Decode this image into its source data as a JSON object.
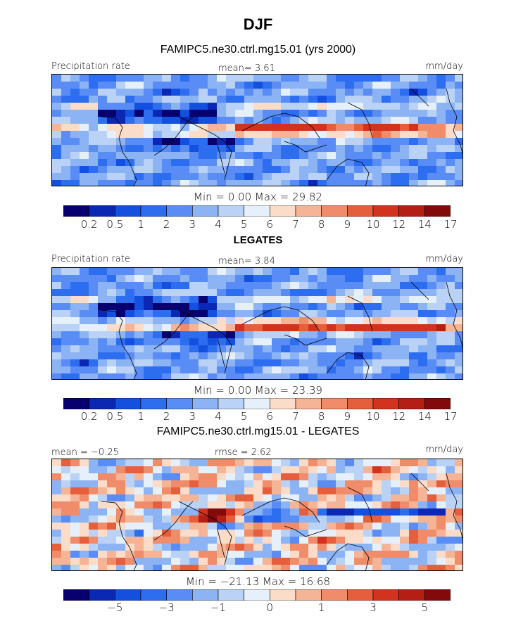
{
  "figure": {
    "title": "DJF",
    "colors": [
      "#08006e",
      "#0a28b4",
      "#1450e0",
      "#2d6ef0",
      "#5a8cf5",
      "#8cb4f5",
      "#b9d2f5",
      "#e6f0fa",
      "#fadcc8",
      "#f5b496",
      "#f08c69",
      "#e65f3c",
      "#d2321e",
      "#b41e14",
      "#820a0a"
    ]
  },
  "panels": [
    {
      "subtitle": "FAMIPC5.ne30.ctrl.mg15.01 (yrs 2000)",
      "left_label": "Precipitation rate",
      "center_label": "mean=   3.61",
      "right_label": "mm/day",
      "minmax": "Min =   0.00 Max =  29.82",
      "colorbar_ticks": [
        "0.2",
        "0.5",
        "1",
        "2",
        "3",
        "4",
        "5",
        "6",
        "7",
        "8",
        "9",
        "10",
        "12",
        "14",
        "17"
      ],
      "field": "model"
    },
    {
      "subtitle": "LEGATES",
      "left_label": "Precipitation rate",
      "center_label": "mean=   3.84",
      "right_label": "mm/day",
      "minmax": "Min =   0.00 Max =  23.39",
      "colorbar_ticks": [
        "0.2",
        "0.5",
        "1",
        "2",
        "3",
        "4",
        "5",
        "6",
        "7",
        "8",
        "9",
        "10",
        "12",
        "14",
        "17"
      ],
      "field": "obs"
    },
    {
      "subtitle": "FAMIPC5.ne30.ctrl.mg15.01 - LEGATES",
      "left_label": "mean =  −0.25",
      "center_label": "rmse =   2.62",
      "right_label": "mm/day",
      "minmax": "Min = −21.13 Max =  16.68",
      "colorbar_ticks": [
        "−5",
        "−3",
        "−1",
        "0",
        "1",
        "3",
        "5"
      ],
      "field": "diff"
    }
  ],
  "chart_data": [
    {
      "type": "heatmap",
      "title": "FAMIPC5.ne30.ctrl.mg15.01 (yrs 2000)",
      "quantity": "Precipitation rate",
      "units": "mm/day",
      "mean": 3.61,
      "min": 0.0,
      "max": 29.82,
      "levels": [
        0.2,
        0.5,
        1,
        2,
        3,
        4,
        5,
        6,
        7,
        8,
        9,
        10,
        12,
        14,
        17
      ],
      "projection": "global lon/lat, centered on Pacific"
    },
    {
      "type": "heatmap",
      "title": "LEGATES",
      "quantity": "Precipitation rate",
      "units": "mm/day",
      "mean": 3.84,
      "min": 0.0,
      "max": 23.39,
      "levels": [
        0.2,
        0.5,
        1,
        2,
        3,
        4,
        5,
        6,
        7,
        8,
        9,
        10,
        12,
        14,
        17
      ]
    },
    {
      "type": "heatmap",
      "title": "FAMIPC5.ne30.ctrl.mg15.01 - LEGATES",
      "units": "mm/day",
      "mean": -0.25,
      "rmse": 2.62,
      "min": -21.13,
      "max": 16.68,
      "levels": [
        -5,
        -3,
        -1,
        0,
        1,
        3,
        5
      ]
    }
  ]
}
